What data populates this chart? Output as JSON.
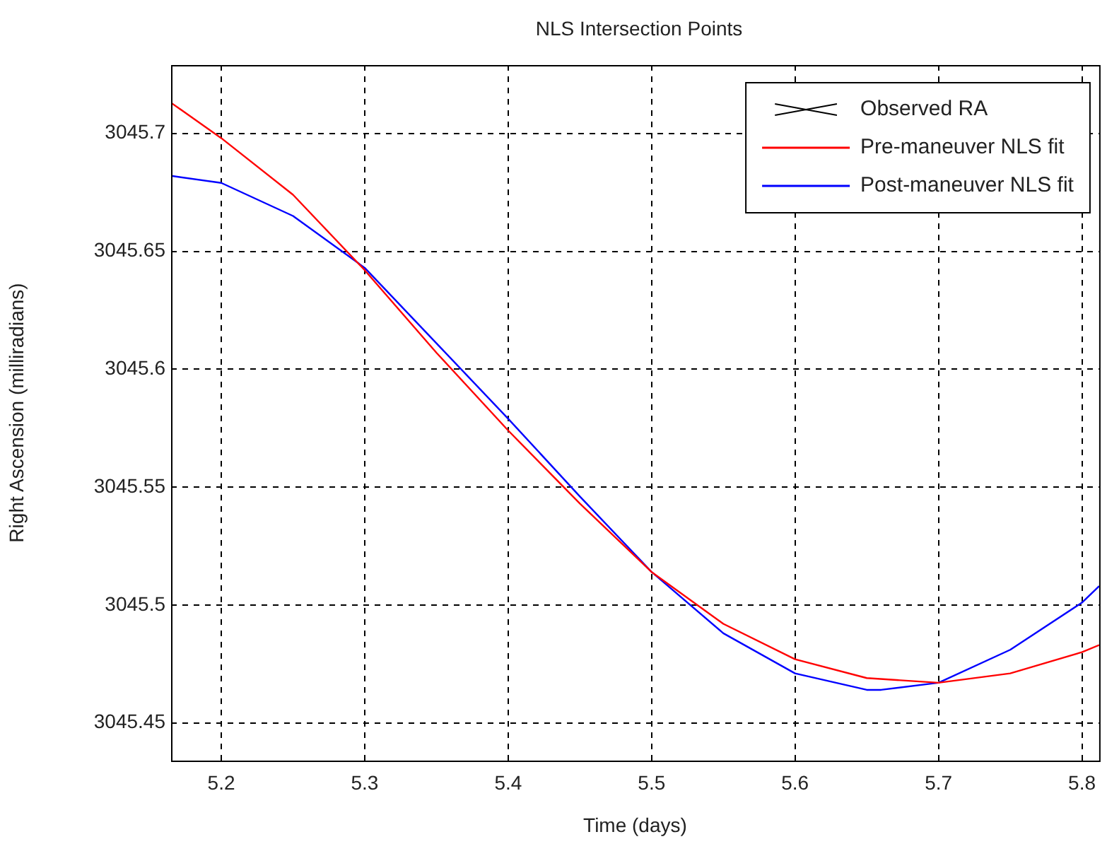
{
  "chart_data": {
    "type": "line",
    "title": "NLS Intersection Points",
    "xlabel": "Time (days)",
    "ylabel": "Right Ascension (milliradians)",
    "xlim": [
      5.165,
      5.812
    ],
    "xticks": [
      {
        "value": 5.2,
        "label": "5.2"
      },
      {
        "value": 5.3,
        "label": "5.3"
      },
      {
        "value": 5.4,
        "label": "5.4"
      },
      {
        "value": 5.5,
        "label": "5.5"
      },
      {
        "value": 5.6,
        "label": "5.6"
      },
      {
        "value": 5.7,
        "label": "5.7"
      },
      {
        "value": 5.8,
        "label": "5.8"
      }
    ],
    "ylim": [
      3045.434,
      3045.729
    ],
    "yticks": [
      {
        "value": 3045.45,
        "label": "3045.45"
      },
      {
        "value": 3045.5,
        "label": "3045.5"
      },
      {
        "value": 3045.55,
        "label": "3045.55"
      },
      {
        "value": 3045.6,
        "label": "3045.6"
      },
      {
        "value": 3045.65,
        "label": "3045.65"
      },
      {
        "value": 3045.7,
        "label": "3045.7"
      }
    ],
    "grid": true,
    "legend": "top right",
    "line_style": "solid",
    "series": [
      {
        "name": "Observed RA",
        "type": "scatter",
        "marker": "cross",
        "color": "#000000"
      },
      {
        "name": "Pre-maneuver NLS fit",
        "color": "#ff0000",
        "x": [
          5.165,
          5.2,
          5.25,
          5.3,
          5.35,
          5.4,
          5.45,
          5.5,
          5.55,
          5.6,
          5.65,
          5.7,
          5.75,
          5.8,
          5.812
        ],
        "values": [
          3045.713,
          3045.698,
          3045.674,
          3045.642,
          3045.607,
          3045.574,
          3045.543,
          3045.514,
          3045.492,
          3045.477,
          3045.469,
          3045.467,
          3045.471,
          3045.48,
          3045.483
        ]
      },
      {
        "name": "Post-maneuver NLS fit",
        "color": "#0000ff",
        "x": [
          5.165,
          5.2,
          5.25,
          5.3,
          5.35,
          5.4,
          5.45,
          5.5,
          5.55,
          5.6,
          5.65,
          5.66,
          5.7,
          5.75,
          5.8,
          5.812
        ],
        "values": [
          3045.682,
          3045.679,
          3045.665,
          3045.643,
          3045.611,
          3045.579,
          3045.546,
          3045.514,
          3045.488,
          3045.471,
          3045.464,
          3045.464,
          3045.467,
          3045.481,
          3045.501,
          3045.508
        ]
      }
    ]
  }
}
